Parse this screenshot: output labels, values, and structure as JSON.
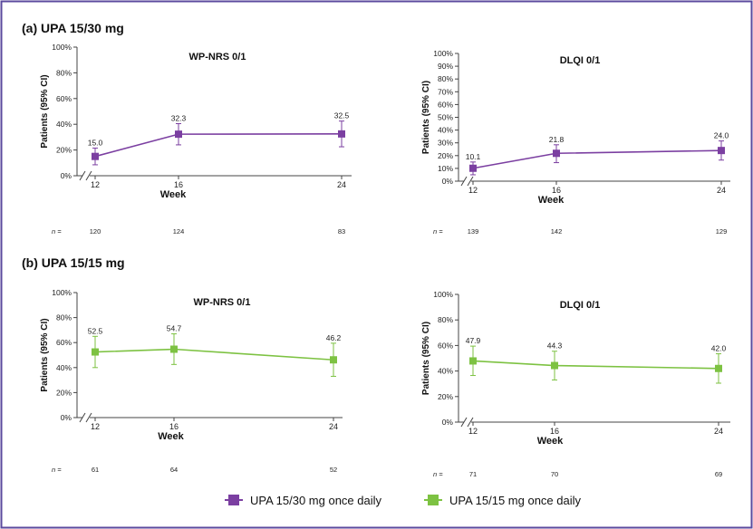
{
  "colors": {
    "purple": "#7b3fa1",
    "green": "#7dc242",
    "frame": "#5b4a9e",
    "axis": "#444444"
  },
  "sections": {
    "a": "(a) UPA 15/30 mg",
    "b": "(b) UPA 15/15 mg"
  },
  "legend": {
    "purple_label": "UPA 15/30 mg once daily",
    "green_label": "UPA 15/15 mg once daily"
  },
  "n_label": "n =",
  "chart_data": [
    {
      "type": "line",
      "title": "WP-NRS 0/1",
      "xlabel": "Week",
      "ylabel": "Patients (95% CI)",
      "ylim": [
        0,
        100
      ],
      "yticks": [
        "0%",
        "20%",
        "40%",
        "60%",
        "80%",
        "100%"
      ],
      "categories": [
        "12",
        "16",
        "24"
      ],
      "series": [
        {
          "name": "UPA 15/30 mg once daily",
          "color": "purple",
          "values": [
            15.0,
            32.3,
            32.5
          ],
          "ci_low": [
            8.5,
            24.0,
            22.5
          ],
          "ci_high": [
            21.5,
            40.5,
            42.5
          ],
          "labels": [
            "15.0",
            "32.3",
            "32.5"
          ]
        }
      ],
      "n": [
        "120",
        "124",
        "83"
      ]
    },
    {
      "type": "line",
      "title": "DLQI 0/1",
      "xlabel": "Week",
      "ylabel": "Patients (95% CI)",
      "ylim": [
        0,
        100
      ],
      "yticks": [
        "0%",
        "10%",
        "20%",
        "30%",
        "40%",
        "50%",
        "60%",
        "70%",
        "80%",
        "90%",
        "100%"
      ],
      "categories": [
        "12",
        "16",
        "24"
      ],
      "series": [
        {
          "name": "UPA 15/30 mg once daily",
          "color": "purple",
          "values": [
            10.1,
            21.8,
            24.0
          ],
          "ci_low": [
            5.0,
            14.5,
            16.5
          ],
          "ci_high": [
            15.0,
            28.5,
            31.5
          ],
          "labels": [
            "10.1",
            "21.8",
            "24.0"
          ]
        }
      ],
      "n": [
        "139",
        "142",
        "129"
      ]
    },
    {
      "type": "line",
      "title": "WP-NRS 0/1",
      "xlabel": "Week",
      "ylabel": "Patients (95% CI)",
      "ylim": [
        0,
        100
      ],
      "yticks": [
        "0%",
        "20%",
        "40%",
        "60%",
        "80%",
        "100%"
      ],
      "categories": [
        "12",
        "16",
        "24"
      ],
      "series": [
        {
          "name": "UPA 15/15 mg once daily",
          "color": "green",
          "values": [
            52.5,
            54.7,
            46.2
          ],
          "ci_low": [
            40.0,
            42.5,
            33.0
          ],
          "ci_high": [
            65.0,
            67.0,
            59.5
          ],
          "labels": [
            "52.5",
            "54.7",
            "46.2"
          ]
        }
      ],
      "n": [
        "61",
        "64",
        "52"
      ]
    },
    {
      "type": "line",
      "title": "DLQI 0/1",
      "xlabel": "Week",
      "ylabel": "Patients (95% CI)",
      "ylim": [
        0,
        100
      ],
      "yticks": [
        "0%",
        "20%",
        "40%",
        "60%",
        "80%",
        "100%"
      ],
      "categories": [
        "12",
        "16",
        "24"
      ],
      "series": [
        {
          "name": "UPA 15/15 mg once daily",
          "color": "green",
          "values": [
            47.9,
            44.3,
            42.0
          ],
          "ci_low": [
            36.5,
            33.0,
            30.5
          ],
          "ci_high": [
            59.5,
            55.5,
            53.5
          ],
          "labels": [
            "47.9",
            "44.3",
            "42.0"
          ]
        }
      ],
      "n": [
        "71",
        "70",
        "69"
      ]
    }
  ]
}
